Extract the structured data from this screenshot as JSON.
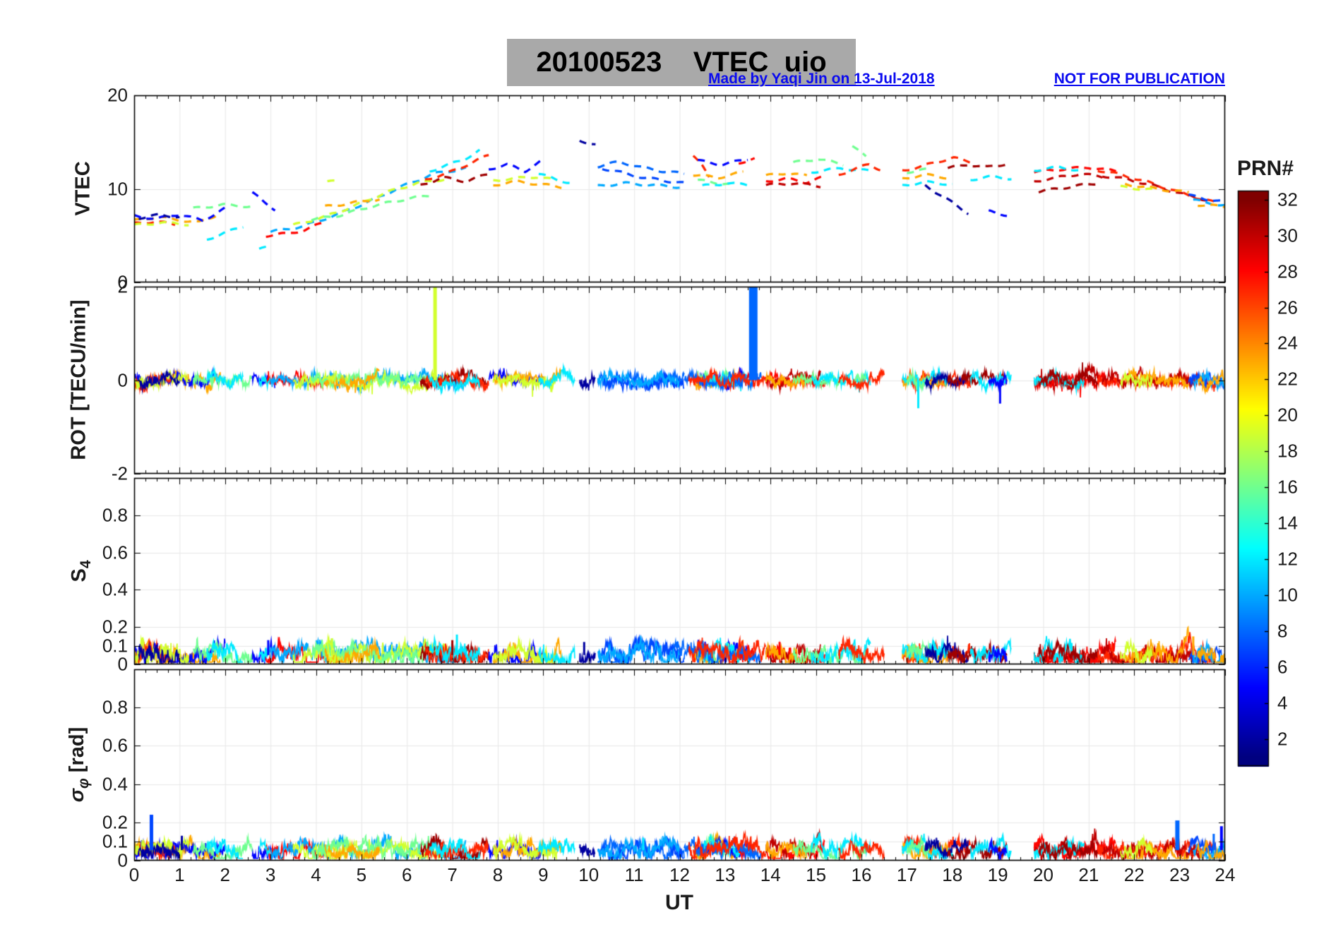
{
  "header": {
    "title": "20100523    VTEC  uio",
    "title_bg": "#a9a9a9",
    "credit": "Made by Yaqi Jin on 13-Jul-2018",
    "warning": "NOT FOR PUBLICATION",
    "annotation_color": "#0a0af0"
  },
  "axes": {
    "x": {
      "label": "UT",
      "min": 0,
      "max": 24,
      "ticks": [
        0,
        1,
        2,
        3,
        4,
        5,
        6,
        7,
        8,
        9,
        10,
        11,
        12,
        13,
        14,
        15,
        16,
        17,
        18,
        19,
        20,
        21,
        22,
        23,
        24
      ]
    },
    "panels": [
      {
        "id": "vtec",
        "ylabel": "VTEC",
        "ymin": 0,
        "ymax": 20,
        "yticks": [
          20,
          10,
          0
        ]
      },
      {
        "id": "rot",
        "ylabel": "ROT [TECU/min]",
        "ymin": -2,
        "ymax": 2,
        "yticks": [
          2,
          0,
          -2
        ]
      },
      {
        "id": "s4",
        "ylabel_main": "S",
        "ylabel_sub": "4",
        "ymin": 0,
        "ymax": 1,
        "yticks": [
          0.8,
          0.6,
          0.4,
          0.2,
          0.1,
          0
        ]
      },
      {
        "id": "sigma",
        "ylabel_pre": "σ",
        "ylabel_sub": "φ",
        "ylabel_post": " [rad]",
        "ymin": 0,
        "ymax": 1,
        "yticks": [
          0.8,
          0.6,
          0.4,
          0.2,
          0.1,
          0
        ]
      }
    ]
  },
  "colorbar": {
    "label": "PRN#",
    "min": 1,
    "max": 32,
    "colormap": "jet",
    "ticks": [
      32,
      30,
      28,
      26,
      24,
      22,
      20,
      18,
      16,
      14,
      12,
      10,
      8,
      6,
      4,
      2
    ]
  },
  "chart_data": {
    "type": "line",
    "title": "20100523 VTEC uio",
    "xlabel": "UT",
    "x_range": [
      0,
      24
    ],
    "legend": "colorbar PRN# 1-32 (jet colormap)",
    "panels": [
      {
        "name": "VTEC",
        "ylabel": "VTEC",
        "unit": "TECU",
        "ylim": [
          0,
          20
        ],
        "yticks": [
          0,
          10,
          20
        ],
        "grid": true
      },
      {
        "name": "ROT",
        "ylabel": "ROT [TECU/min]",
        "ylim": [
          -2,
          2
        ],
        "yticks": [
          -2,
          0,
          2
        ],
        "grid": true
      },
      {
        "name": "S4",
        "ylabel": "S_4",
        "ylim": [
          0,
          1
        ],
        "yticks": [
          0,
          0.1,
          0.2,
          0.4,
          0.6,
          0.8
        ],
        "grid": true
      },
      {
        "name": "sigma_phi",
        "ylabel": "sigma_phi [rad]",
        "ylim": [
          0,
          1
        ],
        "yticks": [
          0,
          0.1,
          0.2,
          0.4,
          0.6,
          0.8
        ],
        "grid": true
      }
    ],
    "seed": 20100523,
    "vtec_arcs": [
      {
        "prn": 23,
        "t": [
          0,
          1.9
        ],
        "vtec": [
          6.6,
          7.0,
          6.7,
          6.4,
          7.4
        ]
      },
      {
        "prn": 5,
        "t": [
          0,
          2.0
        ],
        "vtec": [
          7.1,
          6.8,
          7.3,
          6.6,
          7.9
        ]
      },
      {
        "prn": 27,
        "t": [
          0,
          0.9
        ],
        "vtec": [
          6.3,
          6.5,
          6.2
        ]
      },
      {
        "prn": 19,
        "t": [
          0,
          1.2
        ],
        "vtec": [
          6.1,
          6.4,
          6.2
        ]
      },
      {
        "prn": 2,
        "t": [
          0.1,
          1.0
        ],
        "vtec": [
          6.9,
          7.2,
          7.0
        ]
      },
      {
        "prn": 16,
        "t": [
          1.3,
          2.6
        ],
        "vtec": [
          7.9,
          8.3,
          8.1
        ]
      },
      {
        "prn": 12,
        "t": [
          1.6,
          2.4
        ],
        "vtec": [
          4.6,
          5.3,
          6.0
        ]
      },
      {
        "prn": 5,
        "t": [
          2.6,
          3.1
        ],
        "vtec": [
          9.6,
          8.6,
          7.8
        ]
      },
      {
        "prn": 28,
        "t": [
          2.9,
          4.2
        ],
        "vtec": [
          5.0,
          5.2,
          5.6,
          6.5
        ]
      },
      {
        "prn": 12,
        "t": [
          2.75,
          3.0
        ],
        "vtec": [
          3.5,
          3.9
        ]
      },
      {
        "prn": 10,
        "t": [
          3.0,
          7.3
        ],
        "vtec": [
          5.4,
          6.0,
          7.2,
          8.6,
          10.2,
          11.6,
          12.2
        ]
      },
      {
        "prn": 19,
        "t": [
          3.5,
          6.9
        ],
        "vtec": [
          6.1,
          7.0,
          8.2,
          9.6,
          10.6,
          11.1
        ]
      },
      {
        "prn": 16,
        "t": [
          3.9,
          6.5
        ],
        "vtec": [
          6.7,
          7.2,
          8.1,
          8.8,
          9.3
        ]
      },
      {
        "prn": 23,
        "t": [
          4.2,
          5.4
        ],
        "vtec": [
          8.1,
          8.5,
          8.9
        ]
      },
      {
        "prn": 19,
        "t": [
          4.25,
          4.45
        ],
        "vtec": [
          10.7,
          10.9
        ]
      },
      {
        "prn": 31,
        "t": [
          6.3,
          7.8
        ],
        "vtec": [
          10.4,
          11.2,
          10.8,
          11.6
        ]
      },
      {
        "prn": 27,
        "t": [
          6.4,
          7.8
        ],
        "vtec": [
          11.0,
          11.6,
          12.6,
          13.6
        ]
      },
      {
        "prn": 12,
        "t": [
          6.5,
          7.6
        ],
        "vtec": [
          11.9,
          12.5,
          13.1,
          14.1
        ]
      },
      {
        "prn": 5,
        "t": [
          7.8,
          9.0
        ],
        "vtec": [
          12.1,
          12.6,
          11.9,
          13.1
        ]
      },
      {
        "prn": 23,
        "t": [
          7.9,
          9.4
        ],
        "vtec": [
          10.4,
          10.8,
          10.5,
          10.2
        ]
      },
      {
        "prn": 19,
        "t": [
          7.9,
          9.3
        ],
        "vtec": [
          10.9,
          11.1,
          11.3,
          10.9
        ]
      },
      {
        "prn": 12,
        "t": [
          8.9,
          9.7
        ],
        "vtec": [
          11.6,
          11.0,
          10.5
        ]
      },
      {
        "prn": 2,
        "t": [
          9.8,
          10.15
        ],
        "vtec": [
          15.2,
          14.7
        ]
      },
      {
        "prn": 8,
        "t": [
          10.2,
          12.1
        ],
        "vtec": [
          12.4,
          12.9,
          12.3,
          11.9,
          11.6
        ]
      },
      {
        "prn": 7,
        "t": [
          10.3,
          12.1
        ],
        "vtec": [
          12.2,
          11.7,
          11.2,
          10.9,
          10.6
        ]
      },
      {
        "prn": 10,
        "t": [
          10.2,
          12.0
        ],
        "vtec": [
          10.3,
          10.6,
          10.4,
          10.2
        ]
      },
      {
        "prn": 27,
        "t": [
          12.3,
          12.65
        ],
        "vtec": [
          13.6,
          12.6,
          11.2
        ]
      },
      {
        "prn": 23,
        "t": [
          12.3,
          13.4
        ],
        "vtec": [
          11.5,
          11.2,
          11.8
        ]
      },
      {
        "prn": 5,
        "t": [
          12.4,
          13.5
        ],
        "vtec": [
          13.0,
          12.6,
          13.2
        ]
      },
      {
        "prn": 16,
        "t": [
          12.4,
          13.1
        ],
        "vtec": [
          10.9,
          10.5
        ]
      },
      {
        "prn": 12,
        "t": [
          12.5,
          13.6
        ],
        "vtec": [
          10.3,
          10.6,
          10.4
        ]
      },
      {
        "prn": 28,
        "t": [
          13.3,
          13.65
        ],
        "vtec": [
          12.8,
          13.2
        ]
      },
      {
        "prn": 28,
        "t": [
          13.9,
          15.2
        ],
        "vtec": [
          10.8,
          11.1,
          10.7,
          11.3
        ]
      },
      {
        "prn": 30,
        "t": [
          13.9,
          15.1
        ],
        "vtec": [
          10.4,
          10.6,
          10.3
        ]
      },
      {
        "prn": 23,
        "t": [
          13.9,
          14.8
        ],
        "vtec": [
          11.4,
          11.7,
          11.4
        ]
      },
      {
        "prn": 16,
        "t": [
          14.5,
          15.6
        ],
        "vtec": [
          12.8,
          13.2,
          12.6
        ]
      },
      {
        "prn": 12,
        "t": [
          14.9,
          16.2
        ],
        "vtec": [
          11.8,
          12.2,
          11.9
        ]
      },
      {
        "prn": 16,
        "t": [
          15.8,
          16.1
        ],
        "vtec": [
          14.6,
          13.4
        ]
      },
      {
        "prn": 27,
        "t": [
          15.5,
          16.5
        ],
        "vtec": [
          11.5,
          12.1,
          12.6,
          11.9
        ]
      },
      {
        "prn": 27,
        "t": [
          16.9,
          18.4
        ],
        "vtec": [
          12.0,
          12.3,
          12.9,
          13.3,
          12.9
        ]
      },
      {
        "prn": 23,
        "t": [
          16.9,
          17.9
        ],
        "vtec": [
          11.1,
          11.5,
          11.2
        ]
      },
      {
        "prn": 12,
        "t": [
          16.9,
          18.0
        ],
        "vtec": [
          10.4,
          10.7,
          10.5
        ]
      },
      {
        "prn": 16,
        "t": [
          17.0,
          17.5
        ],
        "vtec": [
          11.8,
          12.1
        ]
      },
      {
        "prn": 2,
        "t": [
          17.4,
          18.35
        ],
        "vtec": [
          10.4,
          9.4,
          8.4,
          7.4
        ]
      },
      {
        "prn": 31,
        "t": [
          17.9,
          19.2
        ],
        "vtec": [
          12.2,
          12.6,
          12.3,
          12.7
        ]
      },
      {
        "prn": 12,
        "t": [
          18.4,
          19.3
        ],
        "vtec": [
          11.0,
          11.3,
          11.1
        ]
      },
      {
        "prn": 5,
        "t": [
          18.8,
          19.2
        ],
        "vtec": [
          7.6,
          7.2
        ]
      },
      {
        "prn": 30,
        "t": [
          19.8,
          21.3
        ],
        "vtec": [
          10.8,
          11.2,
          11.6,
          11.3
        ]
      },
      {
        "prn": 28,
        "t": [
          19.8,
          21.6
        ],
        "vtec": [
          11.8,
          12.1,
          12.3,
          11.9
        ]
      },
      {
        "prn": 12,
        "t": [
          19.8,
          20.9
        ],
        "vtec": [
          12.0,
          12.3,
          11.9
        ]
      },
      {
        "prn": 31,
        "t": [
          19.9,
          21.2
        ],
        "vtec": [
          9.7,
          10.2,
          10.6
        ]
      },
      {
        "prn": 27,
        "t": [
          21.2,
          23.8
        ],
        "vtec": [
          12.0,
          11.5,
          10.8,
          10.0,
          9.2,
          8.5
        ]
      },
      {
        "prn": 30,
        "t": [
          21.3,
          23.6
        ],
        "vtec": [
          11.4,
          11.0,
          10.3,
          9.5,
          8.8
        ]
      },
      {
        "prn": 23,
        "t": [
          21.8,
          23.2
        ],
        "vtec": [
          10.5,
          10.0,
          9.6
        ]
      },
      {
        "prn": 19,
        "t": [
          21.7,
          22.4
        ],
        "vtec": [
          10.2,
          9.9
        ]
      },
      {
        "prn": 7,
        "t": [
          23.2,
          24
        ],
        "vtec": [
          9.3,
          8.9,
          8.6
        ]
      },
      {
        "prn": 10,
        "t": [
          23.3,
          24
        ],
        "vtec": [
          8.8,
          8.5,
          8.2
        ]
      },
      {
        "prn": 23,
        "t": [
          23.4,
          24
        ],
        "vtec": [
          8.3,
          8.1
        ]
      }
    ],
    "extra_coverage": [
      {
        "prn": 8,
        "t": [
          12.1,
          13.8
        ]
      },
      {
        "prn": 27,
        "t": [
          12.2,
          13.9
        ]
      }
    ],
    "rot": {
      "baseline": 0,
      "noise_amp": 0.14,
      "spikes": [
        {
          "prn": 19,
          "t": 6.62,
          "v": 2.0,
          "w": 5
        },
        {
          "prn": 8,
          "t": 13.62,
          "v": 2.0,
          "w": 12
        },
        {
          "prn": 12,
          "t": 17.25,
          "v": -0.6,
          "w": 3
        },
        {
          "prn": 5,
          "t": 19.05,
          "v": -0.5,
          "w": 3
        }
      ]
    },
    "s4": {
      "baseline": 0.05,
      "noise_amp": 0.055,
      "spikes": [
        {
          "prn": 5,
          "t": 2.95,
          "v": 0.13,
          "w": 3
        },
        {
          "prn": 19,
          "t": 4.35,
          "v": 0.14,
          "w": 3
        },
        {
          "prn": 31,
          "t": 7.0,
          "v": 0.13,
          "w": 3
        },
        {
          "prn": 12,
          "t": 7.1,
          "v": 0.16,
          "w": 3
        },
        {
          "prn": 2,
          "t": 9.9,
          "v": 0.12,
          "w": 3
        },
        {
          "prn": 28,
          "t": 14.2,
          "v": 0.12,
          "w": 3
        },
        {
          "prn": 23,
          "t": 23.3,
          "v": 0.15,
          "w": 3
        }
      ]
    },
    "sigma_phi": {
      "baseline": 0.055,
      "noise_amp": 0.045,
      "spikes": [
        {
          "prn": 7,
          "t": 0.38,
          "v": 0.24,
          "w": 5
        },
        {
          "prn": 2,
          "t": 1.05,
          "v": 0.13,
          "w": 3
        },
        {
          "prn": 12,
          "t": 11.2,
          "v": 0.12,
          "w": 3
        },
        {
          "prn": 8,
          "t": 22.95,
          "v": 0.21,
          "w": 6
        },
        {
          "prn": 8,
          "t": 23.75,
          "v": 0.14,
          "w": 3
        },
        {
          "prn": 5,
          "t": 23.92,
          "v": 0.18,
          "w": 4
        }
      ]
    }
  }
}
